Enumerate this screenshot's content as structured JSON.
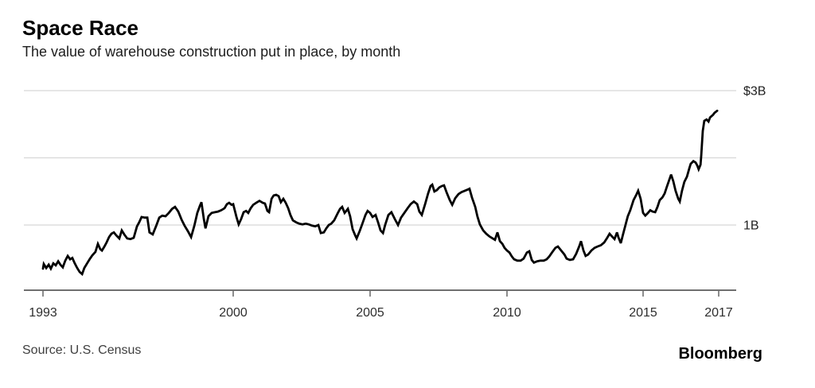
{
  "header": {
    "title": "Space Race",
    "subtitle": "The value of warehouse construction put in place, by month"
  },
  "footer": {
    "source": "Source: U.S. Census",
    "brand": "Bloomberg"
  },
  "colors": {
    "line": "#000000",
    "grid": "#d8d8d8",
    "axis": "#6f6f6f",
    "tick_label": "#2e2e2e",
    "value_label": "#1f1f1f"
  },
  "chart_data": {
    "type": "line",
    "title": "Space Race",
    "subtitle": "The value of warehouse construction put in place, by month",
    "unit_hint": "billions of dollars per month",
    "grid": "horizontal-only",
    "legend": "none",
    "ylim": [
      0,
      3.2
    ],
    "x_ticks": [
      {
        "label": "1993",
        "year": 1993
      },
      {
        "label": "2000",
        "year": 2000
      },
      {
        "label": "2005",
        "year": 2005
      },
      {
        "label": "2010",
        "year": 2010
      },
      {
        "label": "2015",
        "year": 2015
      },
      {
        "label": "2017",
        "year": 2017
      }
    ],
    "y_gridlines": [
      {
        "value": 3,
        "label": "$3B"
      },
      {
        "value": 2,
        "label": ""
      },
      {
        "value": 1,
        "label": "1B"
      }
    ],
    "series": [
      {
        "name": "Value of warehouse construction put in place",
        "points": [
          [
            1993.0,
            0.35
          ],
          [
            1993.03,
            0.42
          ],
          [
            1993.12,
            0.36
          ],
          [
            1993.21,
            0.41
          ],
          [
            1993.29,
            0.35
          ],
          [
            1993.38,
            0.43
          ],
          [
            1993.47,
            0.4
          ],
          [
            1993.56,
            0.46
          ],
          [
            1993.64,
            0.41
          ],
          [
            1993.73,
            0.37
          ],
          [
            1993.82,
            0.47
          ],
          [
            1993.91,
            0.54
          ],
          [
            1994.0,
            0.49
          ],
          [
            1994.08,
            0.51
          ],
          [
            1994.17,
            0.43
          ],
          [
            1994.26,
            0.36
          ],
          [
            1994.35,
            0.3
          ],
          [
            1994.44,
            0.27
          ],
          [
            1994.52,
            0.36
          ],
          [
            1994.64,
            0.44
          ],
          [
            1994.73,
            0.5
          ],
          [
            1994.82,
            0.55
          ],
          [
            1994.93,
            0.6
          ],
          [
            1995.02,
            0.72
          ],
          [
            1995.11,
            0.64
          ],
          [
            1995.17,
            0.62
          ],
          [
            1995.26,
            0.68
          ],
          [
            1995.34,
            0.74
          ],
          [
            1995.43,
            0.82
          ],
          [
            1995.52,
            0.87
          ],
          [
            1995.61,
            0.89
          ],
          [
            1995.69,
            0.85
          ],
          [
            1995.81,
            0.8
          ],
          [
            1995.9,
            0.92
          ],
          [
            1995.99,
            0.86
          ],
          [
            1996.1,
            0.8
          ],
          [
            1996.22,
            0.79
          ],
          [
            1996.34,
            0.81
          ],
          [
            1996.46,
            0.98
          ],
          [
            1996.54,
            1.04
          ],
          [
            1996.63,
            1.12
          ],
          [
            1996.75,
            1.11
          ],
          [
            1996.84,
            1.11
          ],
          [
            1996.92,
            0.89
          ],
          [
            1997.04,
            0.86
          ],
          [
            1997.16,
            0.98
          ],
          [
            1997.28,
            1.11
          ],
          [
            1997.39,
            1.14
          ],
          [
            1997.51,
            1.13
          ],
          [
            1997.63,
            1.18
          ],
          [
            1997.75,
            1.24
          ],
          [
            1997.86,
            1.27
          ],
          [
            1997.98,
            1.2
          ],
          [
            1998.1,
            1.08
          ],
          [
            1998.21,
            0.99
          ],
          [
            1998.33,
            0.91
          ],
          [
            1998.45,
            0.82
          ],
          [
            1998.57,
            0.99
          ],
          [
            1998.68,
            1.18
          ],
          [
            1998.77,
            1.28
          ],
          [
            1998.83,
            1.34
          ],
          [
            1998.92,
            1.09
          ],
          [
            1998.98,
            0.95
          ],
          [
            1999.09,
            1.13
          ],
          [
            1999.21,
            1.18
          ],
          [
            1999.33,
            1.19
          ],
          [
            1999.44,
            1.2
          ],
          [
            1999.56,
            1.22
          ],
          [
            1999.68,
            1.25
          ],
          [
            1999.77,
            1.31
          ],
          [
            1999.85,
            1.33
          ],
          [
            1999.94,
            1.3
          ],
          [
            2000.0,
            1.31
          ],
          [
            2000.12,
            1.12
          ],
          [
            2000.2,
            1.01
          ],
          [
            2000.29,
            1.09
          ],
          [
            2000.38,
            1.19
          ],
          [
            2000.47,
            1.21
          ],
          [
            2000.55,
            1.18
          ],
          [
            2000.64,
            1.25
          ],
          [
            2000.73,
            1.3
          ],
          [
            2000.84,
            1.33
          ],
          [
            2000.96,
            1.36
          ],
          [
            2001.08,
            1.33
          ],
          [
            2001.16,
            1.32
          ],
          [
            2001.25,
            1.21
          ],
          [
            2001.31,
            1.19
          ],
          [
            2001.4,
            1.39
          ],
          [
            2001.48,
            1.44
          ],
          [
            2001.57,
            1.45
          ],
          [
            2001.66,
            1.43
          ],
          [
            2001.74,
            1.34
          ],
          [
            2001.83,
            1.39
          ],
          [
            2001.92,
            1.33
          ],
          [
            2002.01,
            1.25
          ],
          [
            2002.09,
            1.15
          ],
          [
            2002.18,
            1.07
          ],
          [
            2002.3,
            1.04
          ],
          [
            2002.41,
            1.02
          ],
          [
            2002.53,
            1.01
          ],
          [
            2002.65,
            1.02
          ],
          [
            2002.76,
            1.01
          ],
          [
            2002.88,
            0.99
          ],
          [
            2003.0,
            0.98
          ],
          [
            2003.11,
            1.0
          ],
          [
            2003.2,
            0.88
          ],
          [
            2003.31,
            0.89
          ],
          [
            2003.4,
            0.95
          ],
          [
            2003.49,
            1.0
          ],
          [
            2003.58,
            1.02
          ],
          [
            2003.69,
            1.07
          ],
          [
            2003.81,
            1.17
          ],
          [
            2003.9,
            1.24
          ],
          [
            2003.98,
            1.27
          ],
          [
            2004.07,
            1.18
          ],
          [
            2004.19,
            1.24
          ],
          [
            2004.27,
            1.13
          ],
          [
            2004.36,
            0.94
          ],
          [
            2004.45,
            0.85
          ],
          [
            2004.51,
            0.8
          ],
          [
            2004.62,
            0.91
          ],
          [
            2004.71,
            1.01
          ],
          [
            2004.83,
            1.15
          ],
          [
            2004.91,
            1.21
          ],
          [
            2005.0,
            1.18
          ],
          [
            2005.09,
            1.12
          ],
          [
            2005.2,
            1.15
          ],
          [
            2005.29,
            1.04
          ],
          [
            2005.38,
            0.92
          ],
          [
            2005.47,
            0.88
          ],
          [
            2005.55,
            1.0
          ],
          [
            2005.67,
            1.15
          ],
          [
            2005.78,
            1.19
          ],
          [
            2005.9,
            1.09
          ],
          [
            2006.02,
            1.0
          ],
          [
            2006.13,
            1.11
          ],
          [
            2006.25,
            1.18
          ],
          [
            2006.37,
            1.25
          ],
          [
            2006.48,
            1.31
          ],
          [
            2006.6,
            1.35
          ],
          [
            2006.72,
            1.31
          ],
          [
            2006.8,
            1.2
          ],
          [
            2006.89,
            1.15
          ],
          [
            2007.01,
            1.31
          ],
          [
            2007.12,
            1.47
          ],
          [
            2007.21,
            1.58
          ],
          [
            2007.27,
            1.6
          ],
          [
            2007.35,
            1.5
          ],
          [
            2007.44,
            1.52
          ],
          [
            2007.53,
            1.56
          ],
          [
            2007.62,
            1.58
          ],
          [
            2007.7,
            1.59
          ],
          [
            2007.79,
            1.49
          ],
          [
            2007.91,
            1.37
          ],
          [
            2008.0,
            1.3
          ],
          [
            2008.11,
            1.4
          ],
          [
            2008.23,
            1.46
          ],
          [
            2008.34,
            1.49
          ],
          [
            2008.46,
            1.51
          ],
          [
            2008.58,
            1.53
          ],
          [
            2008.63,
            1.54
          ],
          [
            2008.72,
            1.41
          ],
          [
            2008.84,
            1.27
          ],
          [
            2008.92,
            1.13
          ],
          [
            2009.01,
            1.01
          ],
          [
            2009.13,
            0.92
          ],
          [
            2009.24,
            0.87
          ],
          [
            2009.36,
            0.83
          ],
          [
            2009.48,
            0.8
          ],
          [
            2009.56,
            0.78
          ],
          [
            2009.65,
            0.89
          ],
          [
            2009.74,
            0.76
          ],
          [
            2009.83,
            0.72
          ],
          [
            2009.91,
            0.66
          ],
          [
            2010.0,
            0.62
          ],
          [
            2010.09,
            0.59
          ],
          [
            2010.18,
            0.53
          ],
          [
            2010.26,
            0.49
          ],
          [
            2010.38,
            0.47
          ],
          [
            2010.5,
            0.47
          ],
          [
            2010.61,
            0.5
          ],
          [
            2010.73,
            0.59
          ],
          [
            2010.82,
            0.61
          ],
          [
            2010.91,
            0.48
          ],
          [
            2010.99,
            0.44
          ],
          [
            2011.11,
            0.46
          ],
          [
            2011.23,
            0.47
          ],
          [
            2011.35,
            0.47
          ],
          [
            2011.46,
            0.49
          ],
          [
            2011.55,
            0.53
          ],
          [
            2011.67,
            0.6
          ],
          [
            2011.78,
            0.66
          ],
          [
            2011.87,
            0.68
          ],
          [
            2011.99,
            0.62
          ],
          [
            2012.11,
            0.56
          ],
          [
            2012.19,
            0.5
          ],
          [
            2012.31,
            0.48
          ],
          [
            2012.43,
            0.49
          ],
          [
            2012.54,
            0.57
          ],
          [
            2012.66,
            0.69
          ],
          [
            2012.72,
            0.76
          ],
          [
            2012.81,
            0.62
          ],
          [
            2012.89,
            0.54
          ],
          [
            2012.98,
            0.56
          ],
          [
            2013.1,
            0.62
          ],
          [
            2013.22,
            0.66
          ],
          [
            2013.33,
            0.68
          ],
          [
            2013.45,
            0.7
          ],
          [
            2013.57,
            0.74
          ],
          [
            2013.68,
            0.81
          ],
          [
            2013.77,
            0.87
          ],
          [
            2013.86,
            0.83
          ],
          [
            2013.95,
            0.79
          ],
          [
            2014.04,
            0.89
          ],
          [
            2014.09,
            0.82
          ],
          [
            2014.18,
            0.73
          ],
          [
            2014.27,
            0.87
          ],
          [
            2014.36,
            1.01
          ],
          [
            2014.44,
            1.13
          ],
          [
            2014.53,
            1.22
          ],
          [
            2014.65,
            1.37
          ],
          [
            2014.74,
            1.44
          ],
          [
            2014.82,
            1.51
          ],
          [
            2014.91,
            1.39
          ],
          [
            2015.0,
            1.18
          ],
          [
            2015.06,
            1.14
          ],
          [
            2015.13,
            1.18
          ],
          [
            2015.19,
            1.22
          ],
          [
            2015.25,
            1.2
          ],
          [
            2015.32,
            1.19
          ],
          [
            2015.38,
            1.27
          ],
          [
            2015.44,
            1.37
          ],
          [
            2015.51,
            1.41
          ],
          [
            2015.57,
            1.47
          ],
          [
            2015.63,
            1.57
          ],
          [
            2015.69,
            1.67
          ],
          [
            2015.74,
            1.75
          ],
          [
            2015.8,
            1.65
          ],
          [
            2015.86,
            1.51
          ],
          [
            2015.93,
            1.39
          ],
          [
            2015.97,
            1.35
          ],
          [
            2016.03,
            1.51
          ],
          [
            2016.09,
            1.64
          ],
          [
            2016.16,
            1.72
          ],
          [
            2016.22,
            1.84
          ],
          [
            2016.26,
            1.91
          ],
          [
            2016.33,
            1.95
          ],
          [
            2016.39,
            1.93
          ],
          [
            2016.43,
            1.89
          ],
          [
            2016.47,
            1.83
          ],
          [
            2016.52,
            1.9
          ],
          [
            2016.54,
            2.04
          ],
          [
            2016.58,
            2.4
          ],
          [
            2016.62,
            2.55
          ],
          [
            2016.68,
            2.57
          ],
          [
            2016.73,
            2.54
          ],
          [
            2016.77,
            2.6
          ],
          [
            2016.81,
            2.62
          ],
          [
            2016.85,
            2.64
          ],
          [
            2016.89,
            2.67
          ],
          [
            2016.96,
            2.7
          ]
        ]
      }
    ]
  }
}
